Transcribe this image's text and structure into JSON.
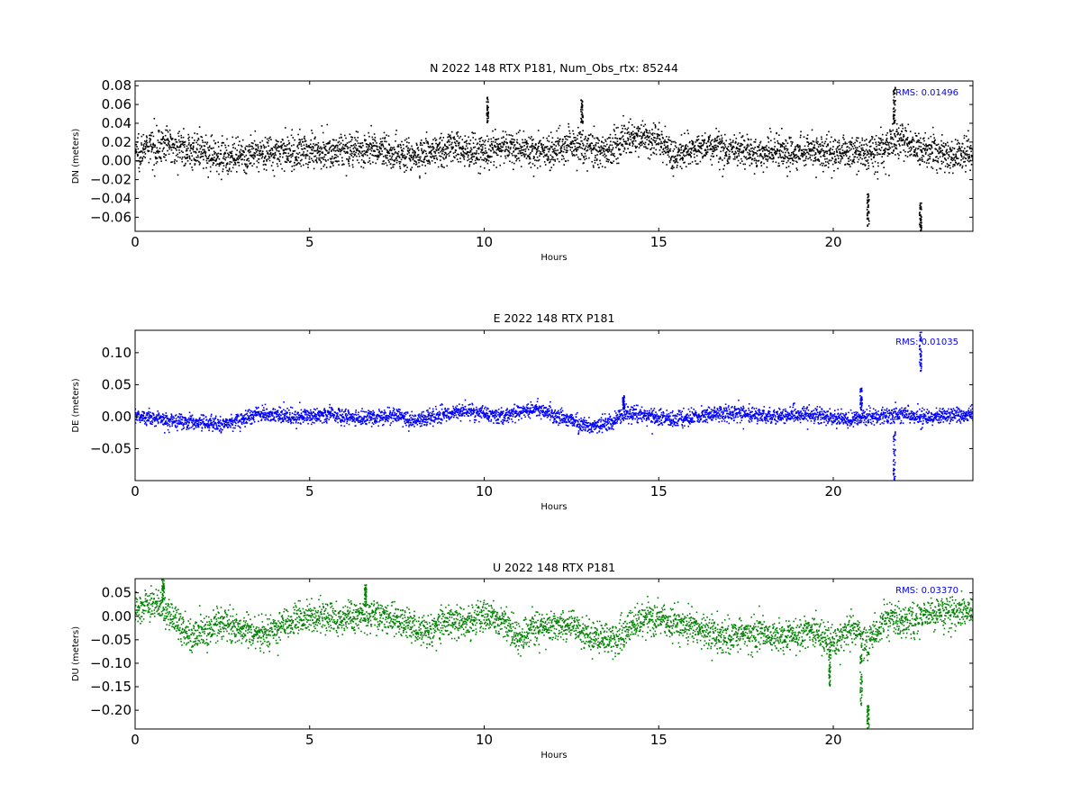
{
  "chart_data": [
    {
      "type": "scatter",
      "title": "N 2022 148 RTX  P181, Num_Obs_rtx: 85244",
      "xlabel": "Hours",
      "ylabel": "DN (meters)",
      "xlim": [
        0,
        24
      ],
      "ylim": [
        -0.075,
        0.085
      ],
      "xticks": [
        0,
        5,
        10,
        15,
        20
      ],
      "yticks": [
        -0.06,
        -0.04,
        -0.02,
        0.0,
        0.02,
        0.04,
        0.06,
        0.08
      ],
      "ytick_labels": [
        "−0.06",
        "−0.04",
        "−0.02",
        "0.00",
        "0.02",
        "0.04",
        "0.06",
        "0.08"
      ],
      "rms_label": "RMS:  0.01496",
      "grid": false,
      "series": [
        {
          "color": "#000000",
          "noise": 0.009,
          "x": [
            0,
            0.5,
            1,
            1.5,
            2,
            2.5,
            3,
            3.5,
            4,
            4.5,
            5,
            5.5,
            6,
            6.5,
            7,
            7.5,
            8,
            8.5,
            9,
            9.5,
            10,
            10.5,
            11,
            11.5,
            12,
            12.5,
            13,
            13.5,
            14,
            14.5,
            15,
            15.5,
            16,
            16.5,
            17,
            17.5,
            18,
            18.5,
            19,
            19.5,
            20,
            20.5,
            21,
            21.5,
            22,
            22.5,
            23,
            23.5,
            24
          ],
          "y": [
            0.01,
            0.015,
            0.018,
            0.012,
            0.008,
            0.005,
            0.002,
            0.008,
            0.01,
            0.008,
            0.012,
            0.01,
            0.012,
            0.01,
            0.012,
            0.008,
            0.005,
            0.01,
            0.015,
            0.012,
            0.008,
            0.015,
            0.012,
            0.01,
            0.012,
            0.018,
            0.015,
            0.01,
            0.022,
            0.025,
            0.02,
            0.005,
            0.012,
            0.015,
            0.01,
            0.012,
            0.008,
            0.01,
            0.008,
            0.012,
            0.008,
            0.01,
            0.008,
            0.015,
            0.022,
            0.012,
            0.008,
            0.005,
            0.008
          ]
        }
      ],
      "spikes": [
        {
          "x": 21.0,
          "y_min": -0.07,
          "y_max": -0.035
        },
        {
          "x": 21.75,
          "y_min": 0.04,
          "y_max": 0.08
        },
        {
          "x": 22.5,
          "y_min": -0.075,
          "y_max": -0.045
        },
        {
          "x": 10.1,
          "y_min": 0.04,
          "y_max": 0.068
        },
        {
          "x": 12.8,
          "y_min": 0.04,
          "y_max": 0.065
        }
      ]
    },
    {
      "type": "scatter",
      "title": "E 2022 148 RTX  P181",
      "xlabel": "Hours",
      "ylabel": "DE (meters)",
      "xlim": [
        0,
        24
      ],
      "ylim": [
        -0.1,
        0.135
      ],
      "xticks": [
        0,
        5,
        10,
        15,
        20
      ],
      "yticks": [
        -0.05,
        0.0,
        0.05,
        0.1
      ],
      "ytick_labels": [
        "−0.05",
        "0.00",
        "0.05",
        "0.10"
      ],
      "rms_label": "RMS:  0.01035",
      "grid": false,
      "series": [
        {
          "color": "#0000ff",
          "noise": 0.006,
          "x": [
            0,
            0.5,
            1,
            1.5,
            2,
            2.5,
            3,
            3.5,
            4,
            4.5,
            5,
            5.5,
            6,
            6.5,
            7,
            7.5,
            8,
            8.5,
            9,
            9.5,
            10,
            10.5,
            11,
            11.5,
            12,
            12.5,
            13,
            13.5,
            14,
            14.5,
            15,
            15.5,
            16,
            16.5,
            17,
            17.5,
            18,
            18.5,
            19,
            19.5,
            20,
            20.5,
            21,
            21.5,
            22,
            22.5,
            23,
            23.5,
            24
          ],
          "y": [
            0.002,
            -0.002,
            -0.005,
            -0.008,
            -0.01,
            -0.012,
            -0.005,
            0.005,
            0.002,
            -0.002,
            0.002,
            0.003,
            0.0,
            -0.003,
            0.0,
            0.002,
            -0.008,
            0.0,
            0.005,
            0.008,
            0.005,
            0.002,
            0.008,
            0.012,
            0.003,
            -0.005,
            -0.015,
            -0.012,
            0.005,
            0.003,
            -0.002,
            -0.003,
            0.0,
            0.002,
            0.003,
            0.005,
            0.002,
            0.0,
            0.003,
            0.002,
            0.0,
            -0.005,
            0.0,
            0.002,
            0.003,
            -0.002,
            0.0,
            0.002,
            0.003
          ]
        }
      ],
      "spikes": [
        {
          "x": 22.5,
          "y_min": 0.07,
          "y_max": 0.132
        },
        {
          "x": 21.75,
          "y_min": -0.1,
          "y_max": -0.02
        },
        {
          "x": 20.8,
          "y_min": 0.01,
          "y_max": 0.045
        },
        {
          "x": 14.0,
          "y_min": 0.012,
          "y_max": 0.033
        }
      ]
    },
    {
      "type": "scatter",
      "title": "U 2022 148 RTX  P181",
      "xlabel": "Hours",
      "ylabel": "DU (meters)",
      "xlim": [
        0,
        24
      ],
      "ylim": [
        -0.24,
        0.08
      ],
      "xticks": [
        0,
        5,
        10,
        15,
        20
      ],
      "yticks": [
        -0.2,
        -0.15,
        -0.1,
        -0.05,
        0.0,
        0.05
      ],
      "ytick_labels": [
        "−0.20",
        "−0.15",
        "−0.10",
        "−0.05",
        "0.00",
        "0.05"
      ],
      "rms_label": "RMS:  0.03370",
      "grid": false,
      "series": [
        {
          "color": "#008000",
          "noise": 0.017,
          "x": [
            0,
            0.5,
            1,
            1.5,
            2,
            2.5,
            3,
            3.5,
            4,
            4.5,
            5,
            5.5,
            6,
            6.5,
            7,
            7.5,
            8,
            8.5,
            9,
            9.5,
            10,
            10.5,
            11,
            11.5,
            12,
            12.5,
            13,
            13.5,
            14,
            14.5,
            15,
            15.5,
            16,
            16.5,
            17,
            17.5,
            18,
            18.5,
            19,
            19.5,
            20,
            20.5,
            21,
            21.5,
            22,
            22.5,
            23,
            23.5,
            24
          ],
          "y": [
            0.015,
            0.03,
            0.005,
            -0.04,
            -0.035,
            -0.01,
            -0.03,
            -0.035,
            -0.03,
            -0.01,
            0.0,
            -0.005,
            -0.01,
            0.005,
            0.0,
            -0.01,
            -0.025,
            -0.03,
            -0.005,
            -0.02,
            0.0,
            -0.01,
            -0.05,
            -0.02,
            -0.02,
            -0.02,
            -0.04,
            -0.05,
            -0.04,
            -0.01,
            -0.005,
            -0.015,
            -0.02,
            -0.04,
            -0.05,
            -0.03,
            -0.04,
            -0.045,
            -0.04,
            -0.03,
            -0.06,
            -0.02,
            -0.06,
            0.0,
            -0.015,
            0.0,
            0.01,
            0.005,
            0.015
          ]
        }
      ],
      "spikes": [
        {
          "x": 20.8,
          "y_min": -0.19,
          "y_max": -0.08
        },
        {
          "x": 21.0,
          "y_min": -0.24,
          "y_max": -0.19
        },
        {
          "x": 19.9,
          "y_min": -0.15,
          "y_max": -0.07
        },
        {
          "x": 6.6,
          "y_min": 0.02,
          "y_max": 0.07
        },
        {
          "x": 0.8,
          "y_min": 0.03,
          "y_max": 0.08
        }
      ]
    }
  ]
}
